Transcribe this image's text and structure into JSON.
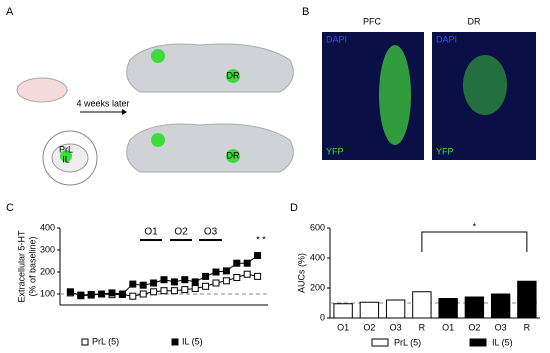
{
  "panel_labels": [
    "A",
    "B",
    "C",
    "D"
  ],
  "diagram": {
    "arrow_label": "4 weeks later",
    "regions": [
      "PrL",
      "IL",
      "DR"
    ]
  },
  "images": {
    "titles": [
      "PFC",
      "DR"
    ],
    "stains": [
      "DAPI",
      "YFP"
    ]
  },
  "chart_data": [
    {
      "type": "line",
      "ylabel": [
        "Extracellular 5-HT",
        "(% of baseline)"
      ],
      "x": [
        1,
        2,
        3,
        4,
        5,
        6,
        7,
        8,
        9,
        10,
        11,
        12,
        13,
        14,
        15,
        16,
        17,
        18,
        19
      ],
      "xlim": [
        0,
        20
      ],
      "ylim": [
        50,
        400
      ],
      "yticks": [
        100,
        200,
        300,
        400
      ],
      "reference_line": 100,
      "series": [
        {
          "name": "PrL (5)",
          "color": "#ffffff",
          "values": [
            105,
            95,
            98,
            100,
            97,
            98,
            90,
            100,
            110,
            115,
            115,
            120,
            125,
            135,
            150,
            160,
            175,
            190,
            180
          ]
        },
        {
          "name": "IL (5)",
          "color": "#000000",
          "values": [
            110,
            92,
            95,
            100,
            105,
            100,
            145,
            140,
            150,
            165,
            155,
            165,
            155,
            180,
            200,
            205,
            240,
            240,
            275
          ]
        }
      ],
      "annotations": [
        "O1",
        "O2",
        "O3",
        "* *"
      ]
    },
    {
      "type": "bar",
      "ylabel": "AUCs (%)",
      "categories": [
        "O1",
        "O2",
        "O3",
        "R",
        "O1",
        "O2",
        "O3",
        "R"
      ],
      "ylim": [
        0,
        600
      ],
      "yticks": [
        0,
        200,
        400,
        600
      ],
      "reference_line": 100,
      "series": [
        {
          "name": "PrL (5)",
          "color": "#ffffff",
          "values": [
            95,
            105,
            120,
            175,
            null,
            null,
            null,
            null
          ]
        },
        {
          "name": "IL (5)",
          "color": "#000000",
          "values": [
            null,
            null,
            null,
            null,
            130,
            140,
            160,
            245
          ]
        }
      ],
      "annotations": [
        "*"
      ]
    }
  ]
}
